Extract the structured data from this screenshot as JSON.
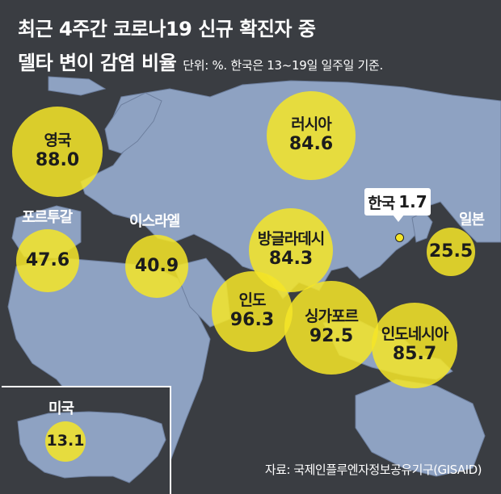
{
  "title": {
    "line1": "최근 4주간 코로나19 신규 확진자 중",
    "line2": "델타 변이 감염 비율",
    "unit_note": "단위: %. 한국은 13~19일 일주일 기준."
  },
  "colors": {
    "background": "#3a3d42",
    "land": "#8ea2c2",
    "bubble": "#f5e528",
    "text": "#ffffff"
  },
  "countries": {
    "uk": {
      "name": "영국",
      "value": "88.0"
    },
    "russia": {
      "name": "러시아",
      "value": "84.6"
    },
    "portugal": {
      "name": "포르투갈",
      "value": "47.6"
    },
    "israel": {
      "name": "이스라엘",
      "value": "40.9"
    },
    "bangladesh": {
      "name": "방글라데시",
      "value": "84.3"
    },
    "korea": {
      "name": "한국",
      "value": "1.7"
    },
    "japan": {
      "name": "일본",
      "value": "25.5"
    },
    "india": {
      "name": "인도",
      "value": "96.3"
    },
    "singapore": {
      "name": "싱가포르",
      "value": "92.5"
    },
    "indonesia": {
      "name": "인도네시아",
      "value": "85.7"
    },
    "usa": {
      "name": "미국",
      "value": "13.1"
    }
  },
  "source": "자료: 국제인플루엔자정보공유기구(GISAID)"
}
